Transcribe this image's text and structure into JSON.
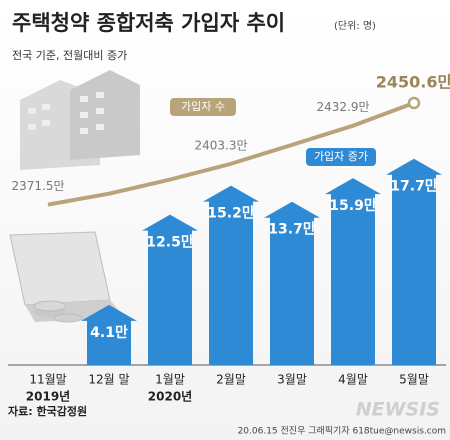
{
  "chart_data": {
    "type": "bar-line",
    "title": "주택청약 종합저축 가입자 추이",
    "unit": "(단위: 명)",
    "subtitle": "전국 기준, 전월대비 증가",
    "categories": [
      "11월말",
      "12월 말",
      "1월말",
      "2월말",
      "3월말",
      "4월말",
      "5월말"
    ],
    "years": [
      "2019년",
      null,
      "2020년",
      null,
      null,
      null,
      null
    ],
    "series": [
      {
        "name": "가입자 증가",
        "color": "#2f8ad6",
        "values": [
          null,
          4.1,
          12.5,
          15.2,
          13.7,
          15.9,
          17.7
        ],
        "value_labels": [
          null,
          "4.1만",
          "12.5만",
          "15.2만",
          "13.7만",
          "15.9만",
          "17.7만"
        ]
      },
      {
        "name": "가입자 수",
        "color": "#b9a47a",
        "axis": "y2",
        "values": [
          2371.5,
          2380,
          2391,
          2403.3,
          2418,
          2432.9,
          2450.6
        ],
        "value_labels": [
          "2371.5만",
          null,
          null,
          "2403.3만",
          null,
          "2432.9만",
          "2450.6만"
        ]
      }
    ],
    "ylim": [
      0,
      20
    ],
    "y2lim": [
      2330,
      2470
    ],
    "source": "자료: 한국감정원",
    "credit": "20.06.15 전진우 그래픽기자 618tue@newsis.com",
    "logo": "NEWSIS"
  }
}
